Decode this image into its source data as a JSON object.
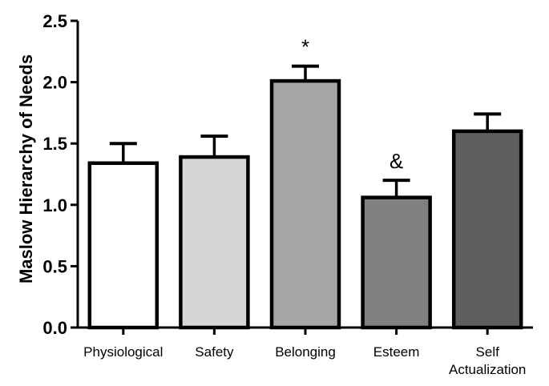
{
  "chart_data": {
    "type": "bar",
    "categories": [
      "Physiological",
      "Safety",
      "Belonging",
      "Esteem",
      "Self Actualization"
    ],
    "category_lines": [
      [
        "Physiological"
      ],
      [
        "Safety"
      ],
      [
        "Belonging"
      ],
      [
        "Esteem"
      ],
      [
        "Self",
        "Actualization"
      ]
    ],
    "values": [
      1.34,
      1.39,
      2.01,
      1.06,
      1.6
    ],
    "errors": [
      0.16,
      0.17,
      0.12,
      0.14,
      0.14
    ],
    "annotations": [
      "",
      "",
      "*",
      "&",
      ""
    ],
    "colors": [
      "#ffffff",
      "#d6d6d6",
      "#a6a6a6",
      "#808080",
      "#5e5e5e"
    ],
    "ylabel": "Maslow Hierarchy of Needs",
    "xlabel": "",
    "ylim": [
      0,
      2.5
    ],
    "yticks": [
      "0.0",
      "0.5",
      "1.0",
      "1.5",
      "2.0",
      "2.5"
    ],
    "grid": false
  }
}
